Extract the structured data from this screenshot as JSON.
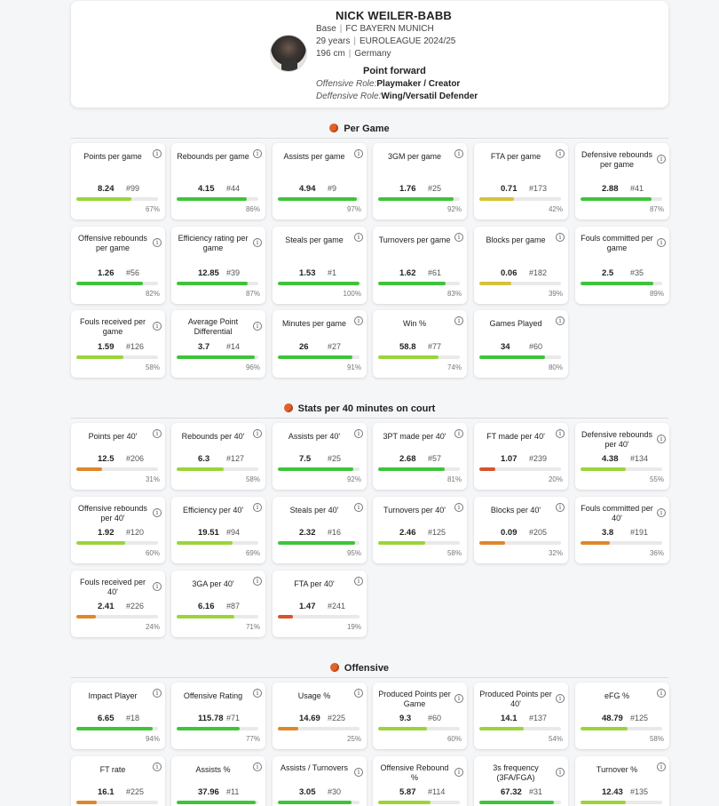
{
  "player": {
    "name": "NICK WEILER-BABB",
    "position": "Base",
    "team": "FC BAYERN MUNICH",
    "age": "29 years",
    "league": "EUROLEAGUE 2024/25",
    "height": "196 cm",
    "country": "Germany",
    "role": "Point forward",
    "offensive_role_label": "Offensive Role:",
    "offensive_role": "Playmaker / Creator",
    "defensive_role_label": "Deffensive Role:",
    "defensive_role": "Wing/Versatil Defender"
  },
  "colors": {
    "green": "#3ec43a",
    "lime": "#9bd43a",
    "yellow": "#d4c23a",
    "orange": "#e0862a",
    "red": "#d9532a"
  },
  "sections": [
    {
      "title": "Per Game",
      "stats": [
        {
          "label": "Points per game",
          "value": "8.24",
          "rank": "#99",
          "pct": "67%",
          "color": "lime"
        },
        {
          "label": "Rebounds per game",
          "value": "4.15",
          "rank": "#44",
          "pct": "86%",
          "color": "green"
        },
        {
          "label": "Assists per game",
          "value": "4.94",
          "rank": "#9",
          "pct": "97%",
          "color": "green"
        },
        {
          "label": "3GM per game",
          "value": "1.76",
          "rank": "#25",
          "pct": "92%",
          "color": "green"
        },
        {
          "label": "FTA per game",
          "value": "0.71",
          "rank": "#173",
          "pct": "42%",
          "color": "yellow"
        },
        {
          "label": "Defensive rebounds per game",
          "value": "2.88",
          "rank": "#41",
          "pct": "87%",
          "color": "green"
        },
        {
          "label": "Offensive rebounds per game",
          "value": "1.26",
          "rank": "#56",
          "pct": "82%",
          "color": "green"
        },
        {
          "label": "Efficiency rating per game",
          "value": "12.85",
          "rank": "#39",
          "pct": "87%",
          "color": "green"
        },
        {
          "label": "Steals per game",
          "value": "1.53",
          "rank": "#1",
          "pct": "100%",
          "color": "green"
        },
        {
          "label": "Turnovers per game",
          "value": "1.62",
          "rank": "#61",
          "pct": "83%",
          "color": "green"
        },
        {
          "label": "Blocks per game",
          "value": "0.06",
          "rank": "#182",
          "pct": "39%",
          "color": "yellow"
        },
        {
          "label": "Fouls committed per game",
          "value": "2.5",
          "rank": "#35",
          "pct": "89%",
          "color": "green"
        },
        {
          "label": "Fouls received per game",
          "value": "1.59",
          "rank": "#126",
          "pct": "58%",
          "color": "lime"
        },
        {
          "label": "Average Point Differential",
          "value": "3.7",
          "rank": "#14",
          "pct": "96%",
          "color": "green"
        },
        {
          "label": "Minutes per game",
          "value": "26",
          "rank": "#27",
          "pct": "91%",
          "color": "green"
        },
        {
          "label": "Win %",
          "value": "58.8",
          "rank": "#77",
          "pct": "74%",
          "color": "lime"
        },
        {
          "label": "Games Played",
          "value": "34",
          "rank": "#60",
          "pct": "80%",
          "color": "green"
        }
      ]
    },
    {
      "title": "Stats per 40 minutes on court",
      "stats": [
        {
          "label": "Points per 40'",
          "value": "12.5",
          "rank": "#206",
          "pct": "31%",
          "color": "orange"
        },
        {
          "label": "Rebounds per 40'",
          "value": "6.3",
          "rank": "#127",
          "pct": "58%",
          "color": "lime"
        },
        {
          "label": "Assists per 40'",
          "value": "7.5",
          "rank": "#25",
          "pct": "92%",
          "color": "green"
        },
        {
          "label": "3PT made per 40'",
          "value": "2.68",
          "rank": "#57",
          "pct": "81%",
          "color": "green"
        },
        {
          "label": "FT made per 40'",
          "value": "1.07",
          "rank": "#239",
          "pct": "20%",
          "color": "red"
        },
        {
          "label": "Defensive rebounds per 40'",
          "value": "4.38",
          "rank": "#134",
          "pct": "55%",
          "color": "lime"
        },
        {
          "label": "Offensive rebounds per 40'",
          "value": "1.92",
          "rank": "#120",
          "pct": "60%",
          "color": "lime"
        },
        {
          "label": "Efficiency per 40'",
          "value": "19.51",
          "rank": "#94",
          "pct": "69%",
          "color": "lime"
        },
        {
          "label": "Steals per 40'",
          "value": "2.32",
          "rank": "#16",
          "pct": "95%",
          "color": "green"
        },
        {
          "label": "Turnovers per 40'",
          "value": "2.46",
          "rank": "#125",
          "pct": "58%",
          "color": "lime"
        },
        {
          "label": "Blocks per 40'",
          "value": "0.09",
          "rank": "#205",
          "pct": "32%",
          "color": "orange"
        },
        {
          "label": "Fouls committed per 40'",
          "value": "3.8",
          "rank": "#191",
          "pct": "36%",
          "color": "orange"
        },
        {
          "label": "Fouls received per 40'",
          "value": "2.41",
          "rank": "#226",
          "pct": "24%",
          "color": "orange"
        },
        {
          "label": "3GA per 40'",
          "value": "6.16",
          "rank": "#87",
          "pct": "71%",
          "color": "lime"
        },
        {
          "label": "FTA per 40'",
          "value": "1.47",
          "rank": "#241",
          "pct": "19%",
          "color": "red"
        }
      ]
    },
    {
      "title": "Offensive",
      "stats": [
        {
          "label": "Impact Player",
          "value": "6.65",
          "rank": "#18",
          "pct": "94%",
          "color": "green"
        },
        {
          "label": "Offensive Rating",
          "value": "115.78",
          "rank": "#71",
          "pct": "77%",
          "color": "green"
        },
        {
          "label": "Usage %",
          "value": "14.69",
          "rank": "#225",
          "pct": "25%",
          "color": "orange"
        },
        {
          "label": "Produced Points per Game",
          "value": "9.3",
          "rank": "#60",
          "pct": "60%",
          "color": "lime"
        },
        {
          "label": "Produced Points per 40'",
          "value": "14.1",
          "rank": "#137",
          "pct": "54%",
          "color": "lime"
        },
        {
          "label": "eFG %",
          "value": "48.79",
          "rank": "#125",
          "pct": "58%",
          "color": "lime"
        },
        {
          "label": "FT rate",
          "value": "16.1",
          "rank": "#225",
          "pct": "25%",
          "color": "orange"
        },
        {
          "label": "Assists %",
          "value": "37.96",
          "rank": "#11",
          "pct": "97%",
          "color": "green"
        },
        {
          "label": "Assists / Turnovers",
          "value": "3.05",
          "rank": "#30",
          "pct": "90%",
          "color": "green"
        },
        {
          "label": "Offensive Rebound %",
          "value": "5.87",
          "rank": "#114",
          "pct": "64%",
          "color": "lime"
        },
        {
          "label": "3s frequency (3FA/FGA)",
          "value": "67.32",
          "rank": "#31",
          "pct": "91%",
          "color": "green"
        },
        {
          "label": "Turnover %",
          "value": "12.43",
          "rank": "#135",
          "pct": "55%",
          "color": "lime"
        }
      ]
    }
  ]
}
